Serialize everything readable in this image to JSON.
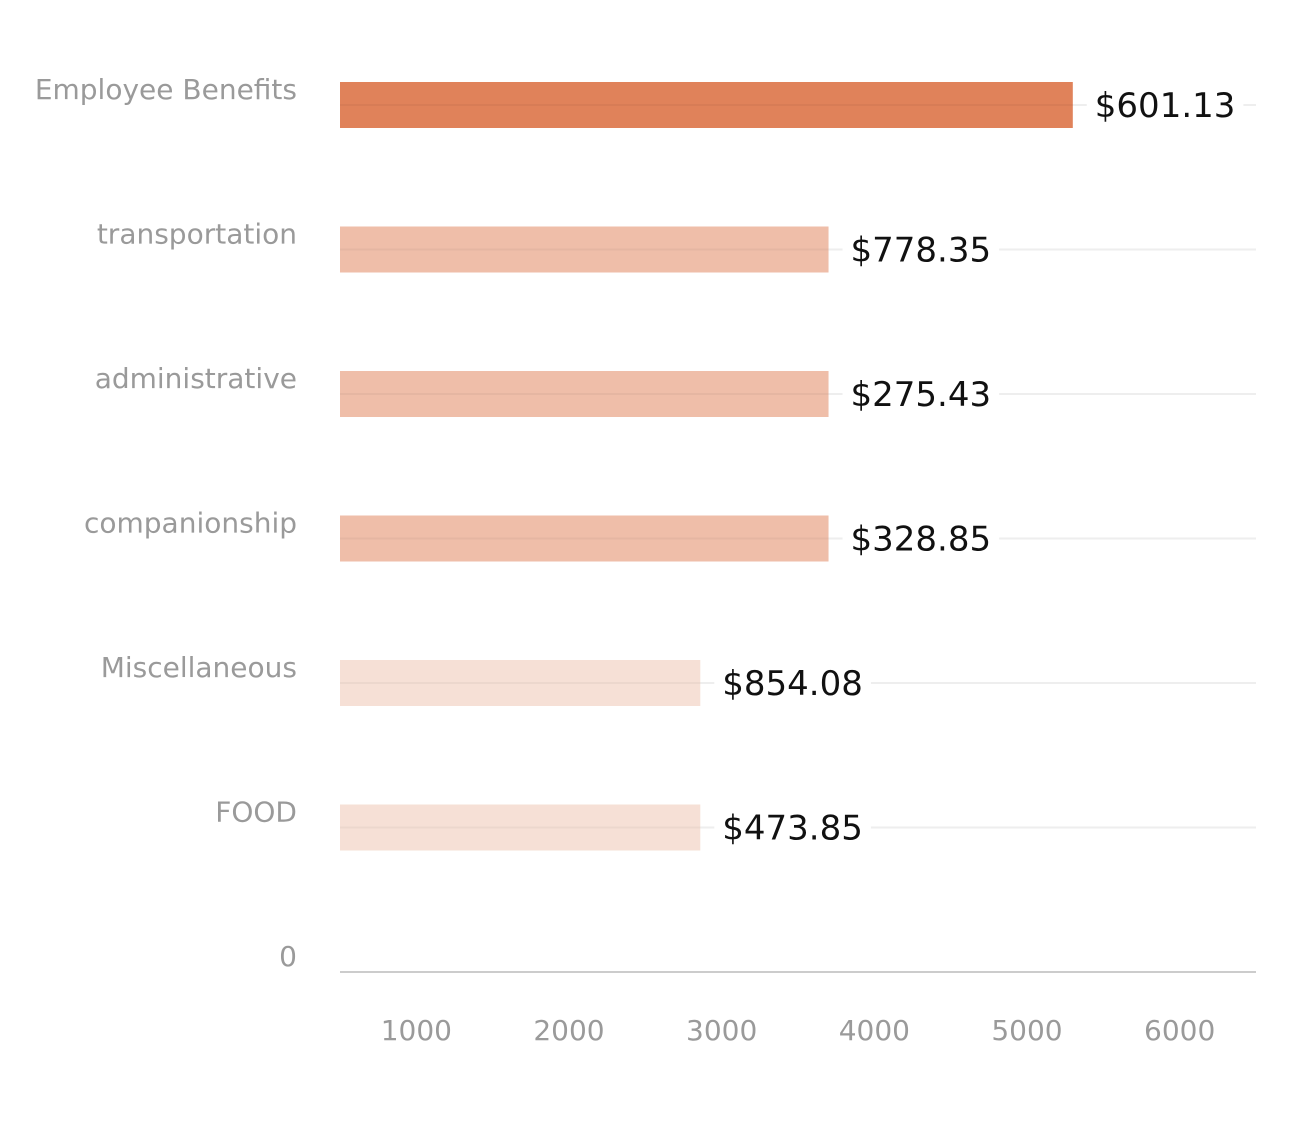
{
  "chart_data": {
    "type": "bar",
    "orientation": "horizontal",
    "categories": [
      "Employee Benefits",
      "transportation",
      "administrative",
      "companionship",
      "Miscellaneous",
      "FOOD",
      "0"
    ],
    "values": [
      5300,
      3700,
      3700,
      3700,
      2860,
      2860,
      null
    ],
    "value_labels": [
      "$601.13",
      "$778.35",
      "$275.43",
      "$328.85",
      "$854.08",
      "$473.85",
      ""
    ],
    "bar_colors": [
      "#e0825a",
      "#efbea9",
      "#efbea9",
      "#efbea9",
      "#f6e0d6",
      "#f6e0d6",
      null
    ],
    "x_ticks": [
      "1000",
      "2000",
      "3000",
      "4000",
      "5000",
      "6000"
    ],
    "x_tick_values": [
      1000,
      2000,
      3000,
      4000,
      5000,
      6000
    ],
    "xlim": [
      500,
      6500
    ],
    "grid": true,
    "title": "",
    "xlabel": "",
    "ylabel": ""
  }
}
